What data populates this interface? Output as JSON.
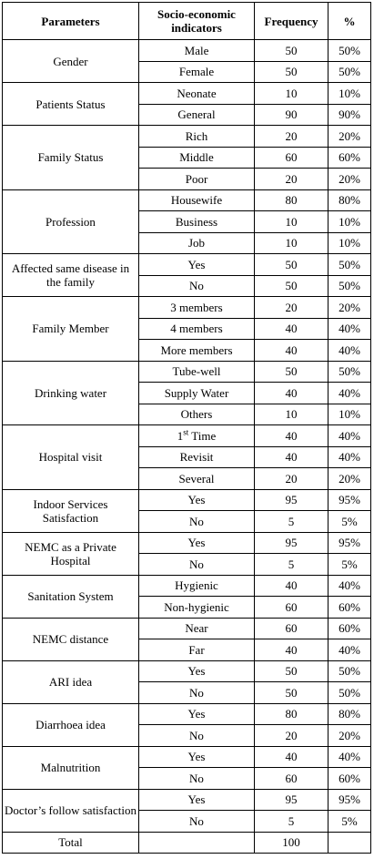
{
  "headers": [
    "Parameters",
    "Socio-economic indicators",
    "Frequency",
    "%"
  ],
  "groups": [
    {
      "param": "Gender",
      "rows": [
        {
          "ind": "Male",
          "freq": "50",
          "pct": "50%"
        },
        {
          "ind": "Female",
          "freq": "50",
          "pct": "50%"
        }
      ]
    },
    {
      "param": "Patients Status",
      "rows": [
        {
          "ind": "Neonate",
          "freq": "10",
          "pct": "10%"
        },
        {
          "ind": "General",
          "freq": "90",
          "pct": "90%"
        }
      ]
    },
    {
      "param": "Family Status",
      "rows": [
        {
          "ind": "Rich",
          "freq": "20",
          "pct": "20%"
        },
        {
          "ind": "Middle",
          "freq": "60",
          "pct": "60%"
        },
        {
          "ind": "Poor",
          "freq": "20",
          "pct": "20%"
        }
      ]
    },
    {
      "param": "Profession",
      "rows": [
        {
          "ind": "Housewife",
          "freq": "80",
          "pct": "80%"
        },
        {
          "ind": "Business",
          "freq": "10",
          "pct": "10%"
        },
        {
          "ind": "Job",
          "freq": "10",
          "pct": "10%"
        }
      ]
    },
    {
      "param": "Affected same disease in the family",
      "rows": [
        {
          "ind": "Yes",
          "freq": "50",
          "pct": "50%"
        },
        {
          "ind": "No",
          "freq": "50",
          "pct": "50%"
        }
      ]
    },
    {
      "param": "Family Member",
      "rows": [
        {
          "ind": "3 members",
          "freq": "20",
          "pct": "20%"
        },
        {
          "ind": "4 members",
          "freq": "40",
          "pct": "40%"
        },
        {
          "ind": "More members",
          "freq": "40",
          "pct": "40%"
        }
      ]
    },
    {
      "param": "Drinking water",
      "rows": [
        {
          "ind": "Tube-well",
          "freq": "50",
          "pct": "50%"
        },
        {
          "ind": "Supply Water",
          "freq": "40",
          "pct": "40%"
        },
        {
          "ind": "Others",
          "freq": "10",
          "pct": "10%"
        }
      ]
    },
    {
      "param": "Hospital visit",
      "rows": [
        {
          "ind": "1",
          "sup": "st",
          "ind_rest": " Time",
          "freq": "40",
          "pct": "40%"
        },
        {
          "ind": "Revisit",
          "freq": "40",
          "pct": "40%"
        },
        {
          "ind": "Several",
          "freq": "20",
          "pct": "20%"
        }
      ]
    },
    {
      "param": "Indoor Services Satisfaction",
      "rows": [
        {
          "ind": "Yes",
          "freq": "95",
          "pct": "95%"
        },
        {
          "ind": "No",
          "freq": "5",
          "pct": "5%"
        }
      ]
    },
    {
      "param": "NEMC as a Private Hospital",
      "rows": [
        {
          "ind": "Yes",
          "freq": "95",
          "pct": "95%"
        },
        {
          "ind": "No",
          "freq": "5",
          "pct": "5%"
        }
      ]
    },
    {
      "param": "Sanitation System",
      "rows": [
        {
          "ind": "Hygienic",
          "freq": "40",
          "pct": "40%"
        },
        {
          "ind": "Non-hygienic",
          "freq": "60",
          "pct": "60%"
        }
      ]
    },
    {
      "param": "NEMC distance",
      "rows": [
        {
          "ind": "Near",
          "freq": "60",
          "pct": "60%"
        },
        {
          "ind": "Far",
          "freq": "40",
          "pct": "40%"
        }
      ]
    },
    {
      "param": "ARI idea",
      "rows": [
        {
          "ind": "Yes",
          "freq": "50",
          "pct": "50%"
        },
        {
          "ind": "No",
          "freq": "50",
          "pct": "50%"
        }
      ]
    },
    {
      "param": "Diarrhoea idea",
      "rows": [
        {
          "ind": "Yes",
          "freq": "80",
          "pct": "80%"
        },
        {
          "ind": "No",
          "freq": "20",
          "pct": "20%"
        }
      ]
    },
    {
      "param": "Malnutrition",
      "rows": [
        {
          "ind": "Yes",
          "freq": "40",
          "pct": "40%"
        },
        {
          "ind": "No",
          "freq": "60",
          "pct": "60%"
        }
      ]
    },
    {
      "param": "Doctor’s follow satisfaction",
      "rows": [
        {
          "ind": "Yes",
          "freq": "95",
          "pct": "95%"
        },
        {
          "ind": "No",
          "freq": "5",
          "pct": "5%"
        }
      ]
    }
  ],
  "total": {
    "label": "Total",
    "freq": "100",
    "pct": ""
  }
}
